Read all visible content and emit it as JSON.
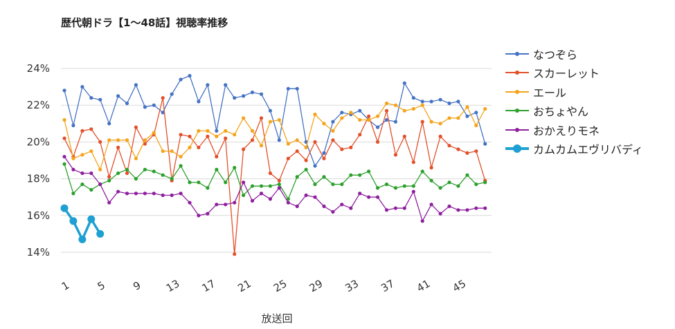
{
  "chart_data": {
    "type": "line",
    "title": "歴代朝ドラ【1～48話】視聴率推移",
    "xlabel": "放送回",
    "ylabel": "",
    "xlim": [
      1,
      48
    ],
    "ylim": [
      13.5,
      24.8
    ],
    "y_ticks": [
      14,
      16,
      18,
      20,
      22,
      24
    ],
    "y_tick_labels": [
      "14%",
      "16%",
      "18%",
      "20%",
      "22%",
      "24%"
    ],
    "x_ticks": [
      1,
      5,
      9,
      13,
      17,
      21,
      25,
      29,
      33,
      37,
      41,
      45
    ],
    "x_tick_labels": [
      "1",
      "5",
      "9",
      "13",
      "17",
      "21",
      "25",
      "29",
      "33",
      "37",
      "41",
      "45"
    ],
    "grid": "horizontal",
    "legend_position": "right",
    "series": [
      {
        "name": "なつぞら",
        "color": "#4472c4",
        "values": [
          22.8,
          20.9,
          23.0,
          22.4,
          22.3,
          21.0,
          22.5,
          22.1,
          23.1,
          21.9,
          22.0,
          21.6,
          22.6,
          23.4,
          23.6,
          22.2,
          23.1,
          20.6,
          23.1,
          22.4,
          22.5,
          22.7,
          22.6,
          21.7,
          20.1,
          22.9,
          22.9,
          20.0,
          18.7,
          19.4,
          21.1,
          21.6,
          21.5,
          21.7,
          21.2,
          20.8,
          21.2,
          21.1,
          23.2,
          22.4,
          22.2,
          22.2,
          22.3,
          22.1,
          22.2,
          21.4,
          21.6,
          19.9
        ]
      },
      {
        "name": "スカーレット",
        "color": "#e2502a",
        "values": [
          20.2,
          19.2,
          20.6,
          20.7,
          20.0,
          18.1,
          19.7,
          18.3,
          20.8,
          19.9,
          20.4,
          22.4,
          17.9,
          20.4,
          20.3,
          19.7,
          20.3,
          19.2,
          20.2,
          13.9,
          19.6,
          20.1,
          21.3,
          18.3,
          17.9,
          19.1,
          19.5,
          19.0,
          20.0,
          19.1,
          20.1,
          19.6,
          19.7,
          20.4,
          21.4,
          20.0,
          21.7,
          19.3,
          20.3,
          18.9,
          21.1,
          18.6,
          20.3,
          19.8,
          19.6,
          19.4,
          19.5,
          17.9
        ]
      },
      {
        "name": "エール",
        "color": "#f5a31a",
        "values": [
          21.2,
          19.1,
          19.3,
          19.5,
          18.5,
          20.1,
          20.1,
          20.1,
          19.1,
          20.1,
          20.5,
          19.5,
          19.5,
          19.2,
          19.7,
          20.6,
          20.6,
          20.3,
          20.6,
          20.4,
          21.3,
          20.6,
          19.8,
          21.1,
          21.2,
          19.9,
          20.1,
          19.7,
          21.5,
          21.0,
          20.6,
          21.3,
          21.6,
          21.2,
          21.2,
          21.4,
          22.1,
          22.0,
          21.7,
          21.8,
          22.0,
          21.1,
          21.0,
          21.3,
          21.3,
          21.9,
          20.9,
          21.8
        ]
      },
      {
        "name": "おちょやん",
        "color": "#2ca02c",
        "values": [
          18.8,
          17.2,
          17.7,
          17.4,
          17.7,
          17.9,
          18.3,
          18.5,
          18.0,
          18.5,
          18.4,
          18.2,
          18.0,
          18.7,
          17.8,
          17.8,
          17.5,
          18.5,
          17.8,
          18.6,
          17.1,
          17.6,
          17.6,
          17.6,
          17.7,
          16.9,
          18.1,
          18.5,
          17.7,
          18.1,
          17.7,
          17.7,
          18.2,
          18.2,
          18.4,
          17.5,
          17.7,
          17.5,
          17.6,
          17.6,
          18.4,
          17.9,
          17.5,
          17.8,
          17.6,
          18.2,
          17.7,
          17.8
        ]
      },
      {
        "name": "おかえりモネ",
        "color": "#8e1f9e",
        "values": [
          19.2,
          18.5,
          18.3,
          18.3,
          17.7,
          16.7,
          17.3,
          17.2,
          17.2,
          17.2,
          17.2,
          17.1,
          17.1,
          17.2,
          16.7,
          16.0,
          16.1,
          16.6,
          16.6,
          16.7,
          17.8,
          16.8,
          17.2,
          16.9,
          17.5,
          16.7,
          16.5,
          17.1,
          17.0,
          16.5,
          16.2,
          16.6,
          16.4,
          17.2,
          17.0,
          17.0,
          16.3,
          16.4,
          16.4,
          17.3,
          15.7,
          16.6,
          16.1,
          16.5,
          16.3,
          16.3,
          16.4,
          16.4
        ]
      },
      {
        "name": "カムカムエヴリバディ",
        "color": "#1ea0d2",
        "bold": true,
        "values": [
          16.4,
          15.7,
          14.7,
          15.8,
          15.0
        ]
      }
    ]
  }
}
